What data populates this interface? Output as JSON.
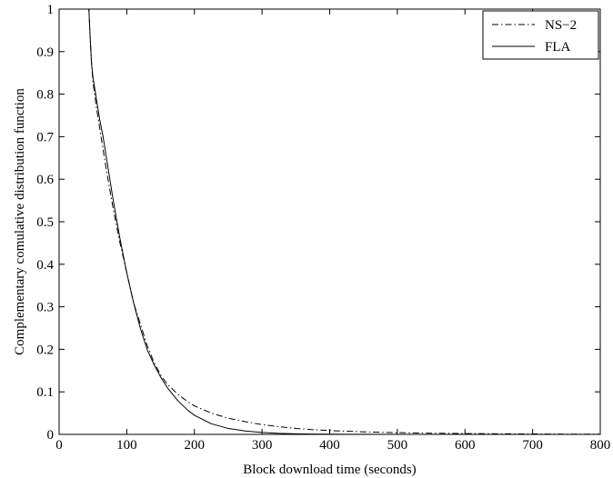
{
  "chart_data": {
    "type": "line",
    "title": "",
    "xlabel": "Block download time (seconds)",
    "ylabel": "Complementary comulative distribution function",
    "xlim": [
      0,
      800
    ],
    "ylim": [
      0,
      1
    ],
    "xticks": [
      0,
      100,
      200,
      300,
      400,
      500,
      600,
      700,
      800
    ],
    "yticks": [
      0,
      0.1,
      0.2,
      0.3,
      0.4,
      0.5,
      0.6,
      0.7,
      0.8,
      0.9,
      1
    ],
    "xtick_labels": [
      "0",
      "100",
      "200",
      "300",
      "400",
      "500",
      "600",
      "700",
      "800"
    ],
    "ytick_labels": [
      "0",
      "0.1",
      "0.2",
      "0.3",
      "0.4",
      "0.5",
      "0.6",
      "0.7",
      "0.8",
      "0.9",
      "1"
    ],
    "grid": false,
    "legend_position": "top-right",
    "series": [
      {
        "name": "NS−2",
        "style": "dash-dot",
        "color": "#000000",
        "x": [
          0,
          44,
          46,
          48,
          50,
          55,
          60,
          65,
          70,
          80,
          90,
          100,
          110,
          120,
          130,
          140,
          150,
          160,
          175,
          190,
          200,
          225,
          250,
          275,
          300,
          325,
          350,
          375,
          400,
          450,
          500,
          550,
          600,
          650,
          700,
          750,
          800
        ],
        "y": [
          1,
          1,
          0.93,
          0.87,
          0.83,
          0.77,
          0.72,
          0.67,
          0.62,
          0.53,
          0.45,
          0.38,
          0.31,
          0.26,
          0.21,
          0.17,
          0.14,
          0.118,
          0.095,
          0.077,
          0.067,
          0.05,
          0.038,
          0.03,
          0.023,
          0.018,
          0.014,
          0.011,
          0.009,
          0.006,
          0.004,
          0.0028,
          0.002,
          0.0014,
          0.001,
          0.0006,
          0.0004
        ]
      },
      {
        "name": "FLA",
        "style": "solid",
        "color": "#000000",
        "x": [
          0,
          44,
          46,
          48,
          50,
          55,
          60,
          65,
          70,
          80,
          90,
          100,
          110,
          120,
          130,
          140,
          150,
          160,
          175,
          190,
          200,
          225,
          250,
          275,
          300,
          325,
          350,
          375,
          400,
          450,
          500,
          550,
          600,
          650,
          700,
          750,
          800
        ],
        "y": [
          1,
          1,
          0.93,
          0.87,
          0.84,
          0.79,
          0.74,
          0.7,
          0.65,
          0.55,
          0.46,
          0.38,
          0.31,
          0.25,
          0.2,
          0.165,
          0.135,
          0.11,
          0.08,
          0.057,
          0.045,
          0.025,
          0.014,
          0.008,
          0.0045,
          0.0025,
          0.0014,
          0.0008,
          0.0005,
          0.0002,
          0.0001,
          0,
          0,
          0,
          0,
          0,
          0
        ]
      }
    ]
  }
}
